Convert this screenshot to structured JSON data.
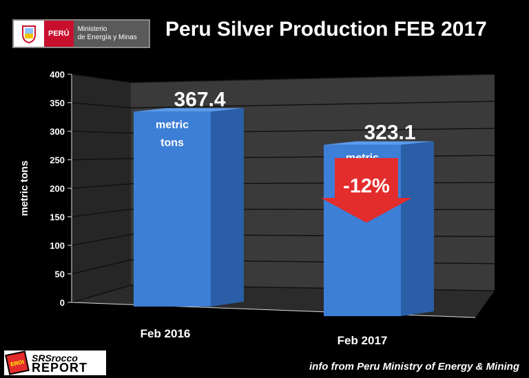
{
  "title": "Peru Silver Production FEB 2017",
  "logo": {
    "country": "PERÚ",
    "ministry_line1": "Ministerio",
    "ministry_line2": "de Energía y Minas"
  },
  "source_note": "info from Peru Ministry of Energy & Mining",
  "brand": {
    "line1": "SRSrocco",
    "line2": "REPORT",
    "badge": "EROI"
  },
  "colors": {
    "bar": "#3d7fd6",
    "bar_side": "#2a5ea6",
    "arrow": "#e32c2c",
    "background": "#000000"
  },
  "chart_data": {
    "type": "bar",
    "categories": [
      "Feb 2016",
      "Feb 2017"
    ],
    "values": [
      367.4,
      323.1
    ],
    "data_labels": [
      "367.4",
      "323.1"
    ],
    "unit_label_lines": [
      "metric",
      "tons"
    ],
    "ylabel": "metric tons",
    "ylim": [
      0,
      400
    ],
    "yticks": [
      0,
      50,
      100,
      150,
      200,
      250,
      300,
      350,
      400
    ],
    "grid": true,
    "annotation": {
      "text": "-12%",
      "shape": "down-arrow",
      "category": "Feb 2017"
    }
  }
}
